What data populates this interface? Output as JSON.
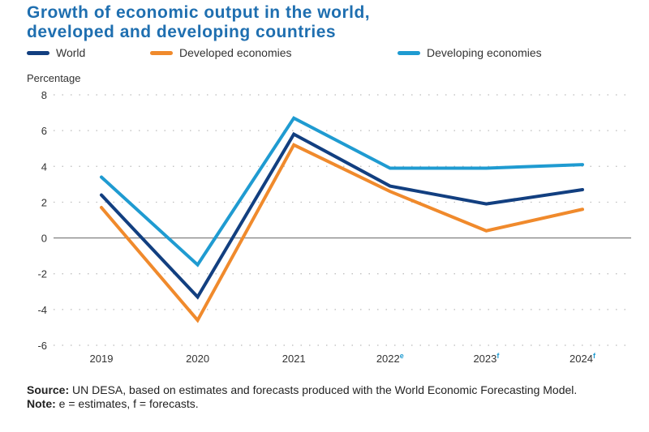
{
  "chart_data": {
    "type": "line",
    "title": "Growth of economic output in the world, developed and developing countries",
    "title_lines": [
      "Growth of economic output in the world,",
      "developed and developing countries"
    ],
    "ylabel": "Percentage",
    "xlabel": "",
    "categories": [
      "2019",
      "2020",
      "2021",
      "2022",
      "2023",
      "2024"
    ],
    "category_superscripts": [
      "",
      "",
      "",
      "e",
      "f",
      "f"
    ],
    "yticks": [
      8,
      6,
      4,
      2,
      0,
      -2,
      -4,
      -6
    ],
    "ylim": [
      -6,
      8
    ],
    "grid": "dotted horizontal",
    "legend_position": "top",
    "series": [
      {
        "name": "World",
        "color": "#123f80",
        "values": [
          2.4,
          -3.3,
          5.8,
          2.9,
          1.9,
          2.7
        ]
      },
      {
        "name": "Developed economies",
        "color": "#f08a2c",
        "values": [
          1.7,
          -4.6,
          5.2,
          2.6,
          0.4,
          1.6
        ]
      },
      {
        "name": "Developing economies",
        "color": "#1f9bd1",
        "values": [
          3.4,
          -1.5,
          6.7,
          3.9,
          3.9,
          4.1
        ]
      }
    ]
  },
  "footer": {
    "source_label": "Source:",
    "source_text": " UN DESA, based on estimates and forecasts produced with the World Economic Forecasting Model.",
    "note_label": "Note:",
    "note_text": " e = estimates, f = forecasts."
  }
}
